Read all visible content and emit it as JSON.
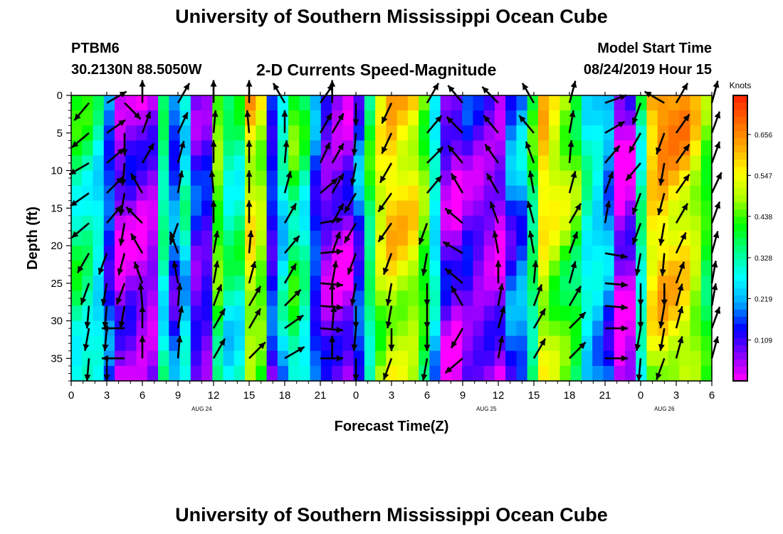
{
  "header": {
    "title": "University of Southern Mississippi Ocean Cube",
    "station": "PTBM6",
    "coordinates": "30.2130N 88.5050W",
    "chart_title": "2-D Currents Speed-Magnitude",
    "model_label": "Model Start Time",
    "model_time": "08/24/2019 Hour 15"
  },
  "footer": {
    "title": "University of Southern Mississippi Ocean Cube"
  },
  "colors": {
    "scale": [
      "#ff00ff",
      "#8800ff",
      "#0000ff",
      "#00aaff",
      "#00ffff",
      "#00ff88",
      "#00ff00",
      "#aaff00",
      "#ffff00",
      "#ffaa00",
      "#ff6600",
      "#ff2200"
    ],
    "arrow": "#000000",
    "frame": "#000000"
  },
  "chart_data": {
    "type": "heatmap",
    "xlabel": "Forecast Time(Z)",
    "ylabel": "Depth (ft)",
    "x_ticks": [
      "0",
      "3",
      "6",
      "9",
      "12",
      "15",
      "18",
      "21",
      "0",
      "3",
      "6",
      "9",
      "12",
      "15",
      "18",
      "21",
      "0",
      "3",
      "6"
    ],
    "date_labels": [
      {
        "label": "AUG 24",
        "hour": 11
      },
      {
        "label": "AUG 25",
        "hour": 35
      },
      {
        "label": "AUG 26",
        "hour": 50
      }
    ],
    "y_ticks": [
      0,
      5,
      10,
      15,
      20,
      25,
      30,
      35
    ],
    "ylim": [
      0,
      38
    ],
    "xlim_hours": [
      0,
      54
    ],
    "colorbar": {
      "title": "Knots",
      "ticks": [
        0.109,
        0.219,
        0.328,
        0.438,
        0.547,
        0.656
      ]
    },
    "speed_columns": [
      0.38,
      0.36,
      0.3,
      0.17,
      0.05,
      0.07,
      0.05,
      0.06,
      0.35,
      0.18,
      0.3,
      0.12,
      0.12,
      0.48,
      0.35,
      0.36,
      0.58,
      0.52,
      0.15,
      0.3,
      0.42,
      0.35,
      0.17,
      0.08,
      0.06,
      0.06,
      0.18,
      0.4,
      0.56,
      0.62,
      0.6,
      0.58,
      0.48,
      0.3,
      0.08,
      0.05,
      0.1,
      0.08,
      0.07,
      0.05,
      0.18,
      0.22,
      0.4,
      0.6,
      0.55,
      0.5,
      0.45,
      0.32,
      0.28,
      0.22,
      0.02,
      0.05,
      0.35,
      0.62,
      0.66,
      0.64,
      0.62,
      0.55,
      0.45
    ],
    "arrow_hours": [
      1.5,
      3,
      4.5,
      6,
      9,
      12,
      15,
      18,
      21,
      22,
      24,
      27,
      30,
      33,
      36,
      39,
      42,
      45,
      48,
      50,
      51,
      54
    ],
    "arrow_depths": [
      1,
      5,
      9,
      13,
      17,
      21,
      25,
      28,
      31,
      35
    ],
    "arrow_directions_deg": [
      [
        220,
        230,
        240,
        235,
        230,
        210,
        200,
        185,
        190,
        185
      ],
      [
        60,
        55,
        50,
        45,
        40,
        200,
        190,
        185,
        185,
        180
      ],
      [
        135,
        180,
        185,
        190,
        190,
        195,
        200,
        190,
        270,
        270
      ],
      [
        0,
        20,
        30,
        330,
        315,
        330,
        340,
        355,
        0,
        0
      ],
      [
        30,
        25,
        15,
        10,
        200,
        340,
        350,
        5,
        10,
        5
      ],
      [
        0,
        5,
        0,
        355,
        0,
        10,
        10,
        20,
        30,
        30
      ],
      [
        0,
        355,
        0,
        0,
        0,
        5,
        15,
        30,
        30,
        45
      ],
      [
        330,
        0,
        5,
        15,
        30,
        40,
        30,
        45,
        55,
        60
      ],
      [
        35,
        30,
        25,
        50,
        80,
        85,
        95,
        95,
        95,
        90
      ],
      [
        0,
        30,
        30,
        30,
        30,
        20,
        10,
        0,
        5,
        0
      ],
      [
        180,
        185,
        190,
        210,
        210,
        200,
        190,
        180,
        185,
        180
      ],
      [
        205,
        205,
        210,
        215,
        215,
        200,
        190,
        190,
        180,
        200
      ],
      [
        30,
        40,
        45,
        40,
        200,
        190,
        180,
        180,
        180,
        190
      ],
      [
        320,
        315,
        320,
        330,
        310,
        300,
        310,
        330,
        210,
        230
      ],
      [
        315,
        320,
        325,
        330,
        340,
        350,
        360,
        10,
        15,
        10
      ],
      [
        330,
        320,
        340,
        350,
        345,
        350,
        5,
        20,
        30,
        30
      ],
      [
        15,
        10,
        5,
        15,
        30,
        20,
        15,
        30,
        45,
        45
      ],
      [
        70,
        60,
        40,
        20,
        10,
        100,
        95,
        95,
        90,
        90
      ],
      [
        200,
        210,
        220,
        200,
        200,
        190,
        180,
        180,
        190,
        185
      ],
      [
        300,
        200,
        190,
        195,
        190,
        185,
        180,
        190,
        190,
        200
      ],
      [
        30,
        35,
        35,
        35,
        30,
        25,
        20,
        15,
        15,
        15
      ],
      [
        15,
        20,
        20,
        25,
        20,
        15,
        10,
        10,
        20,
        15
      ]
    ]
  }
}
